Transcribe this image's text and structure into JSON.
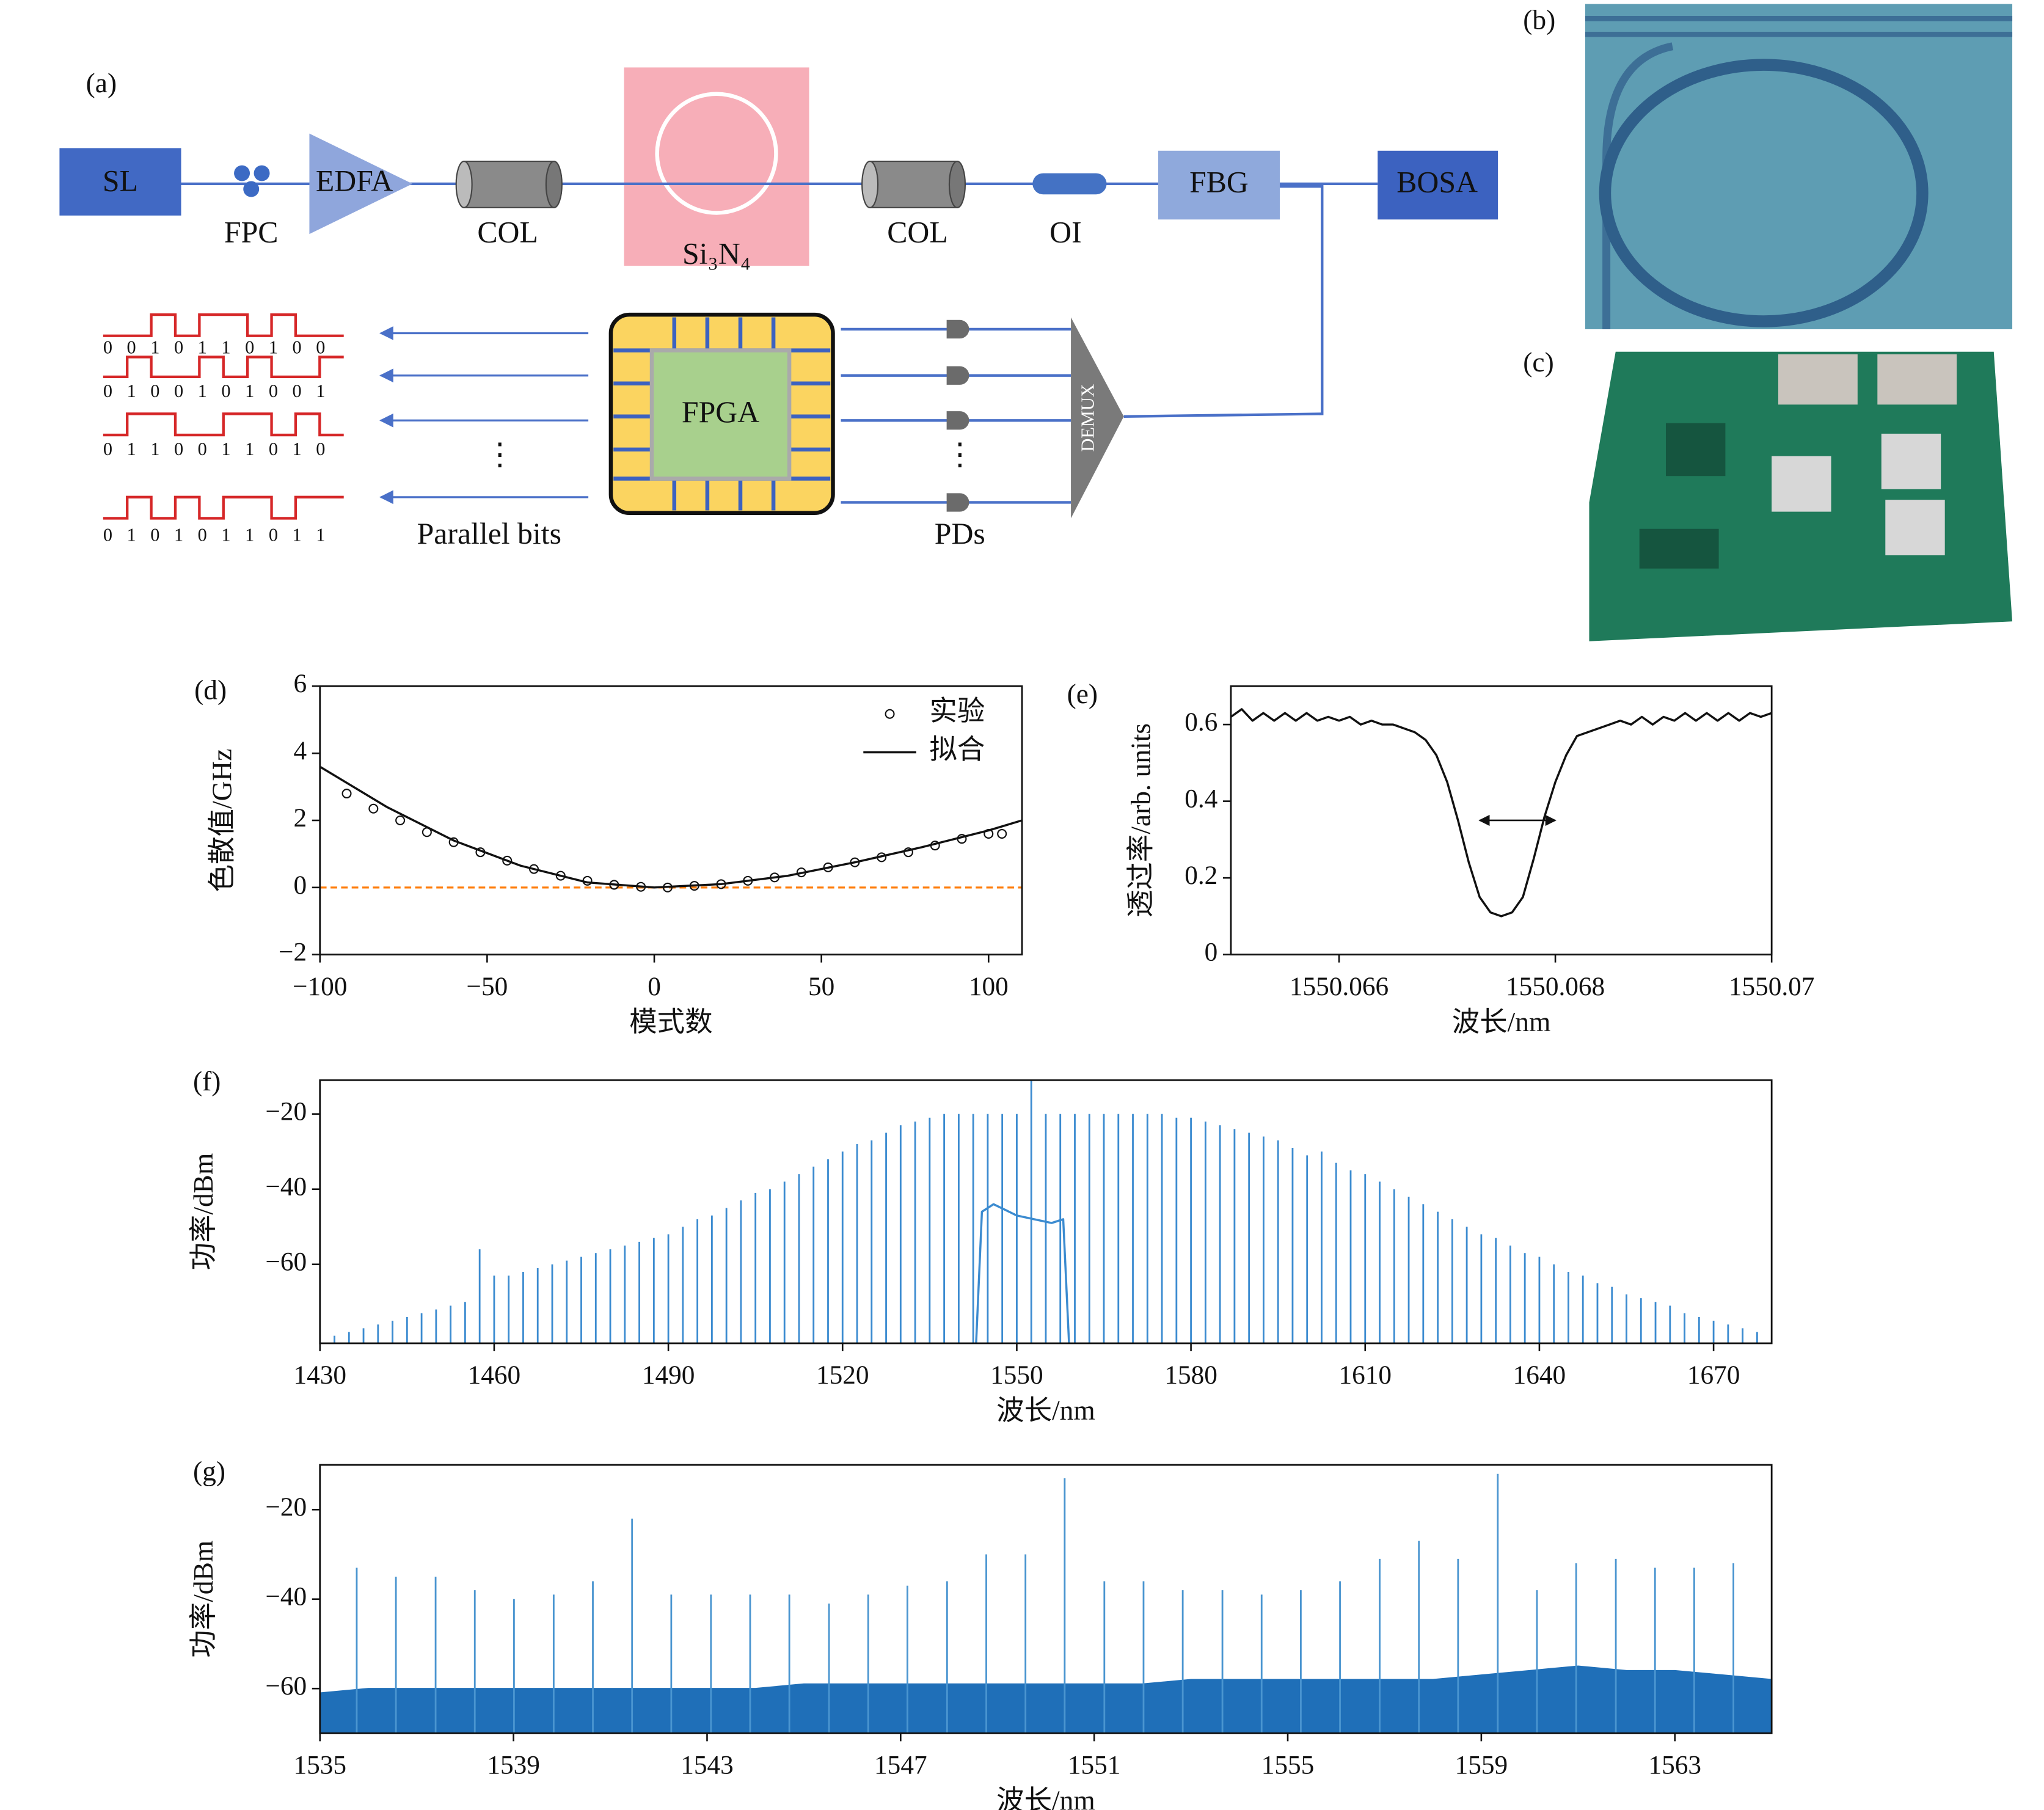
{
  "panel_labels": [
    "(a)",
    "(b)",
    "(c)",
    "(d)",
    "(e)",
    "(f)",
    "(g)"
  ],
  "diagram": {
    "sl": "SL",
    "fpc": "FPC",
    "edfa": "EDFA",
    "col_1": "COL",
    "si3n4": "Si₃N₄",
    "col_2": "COL",
    "oi": "OI",
    "fbg": "FBG",
    "bosa": "BOSA",
    "fpga": "FPGA",
    "demux": "DEMUX",
    "pds": "PDs",
    "parallel_bits": "Parallel bits",
    "ellipsis_left": "⋮",
    "ellipsis_right": "⋮",
    "bit_streams": [
      "0 0 1 0 1 1 0 1 0 0",
      "0 1 0 0 1 0 1 0 0 1",
      "0 1 1 0 0 1 1 0 1 0",
      "0 1 0 1 0 1 1 0 1 1"
    ]
  },
  "chart_data": [
    {
      "type": "scatter",
      "xlabel": "模式数",
      "ylabel": "色散值/GHz",
      "xlim": [
        -100,
        110
      ],
      "ylim": [
        -2,
        6
      ],
      "xticks": [
        {
          "value": -100,
          "label": "−100"
        },
        {
          "value": -50,
          "label": "−50"
        },
        0,
        50,
        100
      ],
      "yticks": [
        {
          "value": -2,
          "label": "−2"
        },
        0,
        2,
        4,
        6
      ],
      "legend": "upper right",
      "reference_line": {
        "y": 0,
        "color": "#ff7f0e"
      },
      "series": [
        {
          "name": "实验",
          "mode": "markers",
          "color": "#111111",
          "x": [
            -92,
            -84,
            -76,
            -68,
            -60,
            -52,
            -44,
            -36,
            -28,
            -20,
            -12,
            -4,
            4,
            12,
            20,
            28,
            36,
            44,
            52,
            60,
            68,
            76,
            84,
            92,
            100,
            104
          ],
          "values": [
            2.8,
            2.35,
            2.0,
            1.65,
            1.35,
            1.05,
            0.8,
            0.55,
            0.35,
            0.2,
            0.08,
            0.02,
            0.0,
            0.05,
            0.1,
            0.2,
            0.3,
            0.45,
            0.6,
            0.75,
            0.9,
            1.05,
            1.25,
            1.45,
            1.6,
            1.6
          ]
        },
        {
          "name": "拟合",
          "mode": "lines",
          "color": "#111111",
          "x": [
            -100,
            -80,
            -60,
            -40,
            -20,
            0,
            20,
            40,
            60,
            80,
            100,
            110
          ],
          "values": [
            3.6,
            2.4,
            1.4,
            0.65,
            0.15,
            0,
            0.1,
            0.35,
            0.75,
            1.2,
            1.7,
            2.0
          ]
        }
      ]
    },
    {
      "type": "line",
      "xlabel": "波长/nm",
      "ylabel": "透过率/arb. units",
      "xlim": [
        1550.065,
        1550.07
      ],
      "ylim": [
        0,
        0.7
      ],
      "xticks": [
        1550.066,
        1550.068,
        1550.07
      ],
      "yticks": [
        0,
        0.2,
        0.4,
        0.6
      ],
      "annotation_arrow": {
        "x": [
          1550.0673,
          1550.068
        ],
        "y": 0.35
      },
      "series": [
        {
          "mode": "lines",
          "color": "#111111",
          "x": [
            1550.065,
            1550.0651,
            1550.0652,
            1550.0653,
            1550.0654,
            1550.0655,
            1550.0656,
            1550.0657,
            1550.0658,
            1550.0659,
            1550.066,
            1550.0661,
            1550.0662,
            1550.0663,
            1550.0664,
            1550.0665,
            1550.0666,
            1550.0667,
            1550.0668,
            1550.0669,
            1550.067,
            1550.0671,
            1550.0672,
            1550.0673,
            1550.0674,
            1550.0675,
            1550.0676,
            1550.0677,
            1550.0678,
            1550.0679,
            1550.068,
            1550.0681,
            1550.0682,
            1550.0683,
            1550.0684,
            1550.0685,
            1550.0686,
            1550.0687,
            1550.0688,
            1550.0689,
            1550.069,
            1550.0691,
            1550.0692,
            1550.0693,
            1550.0694,
            1550.0695,
            1550.0696,
            1550.0697,
            1550.0698,
            1550.0699,
            1550.07
          ],
          "values": [
            0.62,
            0.64,
            0.61,
            0.63,
            0.61,
            0.63,
            0.61,
            0.63,
            0.61,
            0.62,
            0.61,
            0.62,
            0.6,
            0.61,
            0.6,
            0.6,
            0.59,
            0.58,
            0.56,
            0.52,
            0.45,
            0.35,
            0.24,
            0.15,
            0.11,
            0.1,
            0.11,
            0.15,
            0.25,
            0.36,
            0.45,
            0.52,
            0.57,
            0.58,
            0.59,
            0.6,
            0.61,
            0.6,
            0.62,
            0.6,
            0.62,
            0.61,
            0.63,
            0.61,
            0.63,
            0.61,
            0.63,
            0.61,
            0.63,
            0.62,
            0.63
          ]
        }
      ]
    },
    {
      "type": "stem",
      "xlabel": "波长/nm",
      "ylabel": "功率/dBm",
      "xlim": [
        1430,
        1680
      ],
      "ylim": [
        -81,
        -11
      ],
      "xticks": [
        1430,
        1460,
        1490,
        1520,
        1550,
        1580,
        1610,
        1640,
        1670
      ],
      "yticks": [
        {
          "value": -20,
          "label": "−20"
        },
        {
          "value": -40,
          "label": "−40"
        },
        {
          "value": -60,
          "label": "−60"
        }
      ],
      "series": [
        {
          "mode": "stems",
          "color": "#3b8bd0",
          "x": [
            1432.5,
            1435,
            1437.5,
            1440,
            1442.5,
            1445,
            1447.5,
            1450,
            1452.5,
            1455,
            1457.5,
            1460,
            1462.5,
            1465,
            1467.5,
            1470,
            1472.5,
            1475,
            1477.5,
            1480,
            1482.5,
            1485,
            1487.5,
            1490,
            1492.5,
            1495,
            1497.5,
            1500,
            1502.5,
            1505,
            1507.5,
            1510,
            1512.5,
            1515,
            1517.5,
            1520,
            1522.5,
            1525,
            1527.5,
            1530,
            1532.5,
            1535,
            1537.5,
            1540,
            1542.5,
            1545,
            1547.5,
            1550,
            1552.5,
            1555,
            1557.5,
            1560,
            1562.5,
            1565,
            1567.5,
            1570,
            1572.5,
            1575,
            1577.5,
            1580,
            1582.5,
            1585,
            1587.5,
            1590,
            1592.5,
            1595,
            1597.5,
            1600,
            1602.5,
            1605,
            1607.5,
            1610,
            1612.5,
            1615,
            1617.5,
            1620,
            1622.5,
            1625,
            1627.5,
            1630,
            1632.5,
            1635,
            1637.5,
            1640,
            1642.5,
            1645,
            1647.5,
            1650,
            1652.5,
            1655,
            1657.5,
            1660,
            1662.5,
            1665,
            1667.5,
            1670,
            1672.5,
            1675,
            1677.5
          ],
          "values": [
            -79,
            -78,
            -77,
            -76,
            -75,
            -74,
            -73,
            -72,
            -71,
            -70,
            -56,
            -63,
            -63,
            -62,
            -61,
            -60,
            -59,
            -58,
            -57,
            -56,
            -55,
            -54,
            -53,
            -52,
            -50,
            -48,
            -47,
            -45,
            -43,
            -41,
            -40,
            -38,
            -36,
            -34,
            -32,
            -30,
            -28,
            -27,
            -25,
            -23,
            -22,
            -21,
            -20,
            -20,
            -20,
            -20,
            -20,
            -20,
            -11,
            -20,
            -20,
            -20,
            -20,
            -20,
            -20,
            -20,
            -20,
            -20,
            -21,
            -21,
            -22,
            -23,
            -24,
            -25,
            -26,
            -27,
            -29,
            -31,
            -30,
            -33,
            -35,
            -36,
            -38,
            -40,
            -42,
            -44,
            -46,
            -48,
            -50,
            -52,
            -53,
            -55,
            -57,
            -58,
            -60,
            -62,
            -63,
            -65,
            -66,
            -68,
            -69,
            -70,
            -71,
            -73,
            -74,
            -75,
            -76,
            -77,
            -78
          ]
        },
        {
          "mode": "lines",
          "color": "#3b8bd0",
          "x": [
            1543,
            1544,
            1546,
            1550,
            1556,
            1558,
            1559
          ],
          "values": [
            -81,
            -46,
            -44,
            -47,
            -49,
            -48,
            -81
          ]
        }
      ]
    },
    {
      "type": "stem",
      "xlabel": "波长/nm",
      "ylabel": "功率/dBm",
      "xlim": [
        1535,
        1565
      ],
      "ylim": [
        -70,
        -10
      ],
      "xticks": [
        1535,
        1539,
        1543,
        1547,
        1551,
        1555,
        1559,
        1563
      ],
      "yticks": [
        {
          "value": -20,
          "label": "−20"
        },
        {
          "value": -40,
          "label": "−40"
        },
        {
          "value": -60,
          "label": "−60"
        }
      ],
      "series": [
        {
          "mode": "area",
          "color": "#1f6fb8",
          "x": [
            1535,
            1536,
            1537,
            1538,
            1539,
            1540,
            1541,
            1542,
            1543,
            1544,
            1545,
            1546,
            1547,
            1548,
            1549,
            1550,
            1551,
            1552,
            1553,
            1554,
            1555,
            1556,
            1557,
            1558,
            1559,
            1560,
            1561,
            1562,
            1563,
            1564,
            1565
          ],
          "values": [
            -61,
            -60,
            -60,
            -60,
            -60,
            -60,
            -60,
            -60,
            -60,
            -60,
            -59,
            -59,
            -59,
            -59,
            -59,
            -59,
            -59,
            -59,
            -58,
            -58,
            -58,
            -58,
            -58,
            -58,
            -57,
            -56,
            -55,
            -56,
            -56,
            -57,
            -58
          ]
        },
        {
          "mode": "stems",
          "color": "#4a95d0",
          "x": [
            1535.76,
            1536.57,
            1537.39,
            1538.2,
            1539.01,
            1539.83,
            1540.64,
            1541.45,
            1542.26,
            1543.08,
            1543.89,
            1544.7,
            1545.52,
            1546.33,
            1547.14,
            1547.96,
            1548.77,
            1549.58,
            1550.39,
            1551.21,
            1552.02,
            1552.83,
            1553.65,
            1554.46,
            1555.27,
            1556.08,
            1556.9,
            1557.71,
            1558.52,
            1559.34,
            1560.15,
            1560.96,
            1561.78,
            1562.59,
            1563.4,
            1564.21
          ],
          "values": [
            -33,
            -35,
            -35,
            -38,
            -40,
            -39,
            -36,
            -22,
            -39,
            -39,
            -39,
            -39,
            -41,
            -39,
            -37,
            -36,
            -30,
            -30,
            -13,
            -36,
            -36,
            -38,
            -38,
            -39,
            -38,
            -36,
            -31,
            -27,
            -31,
            -12,
            -38,
            -32,
            -31,
            -33,
            -33,
            -32
          ]
        }
      ]
    }
  ]
}
